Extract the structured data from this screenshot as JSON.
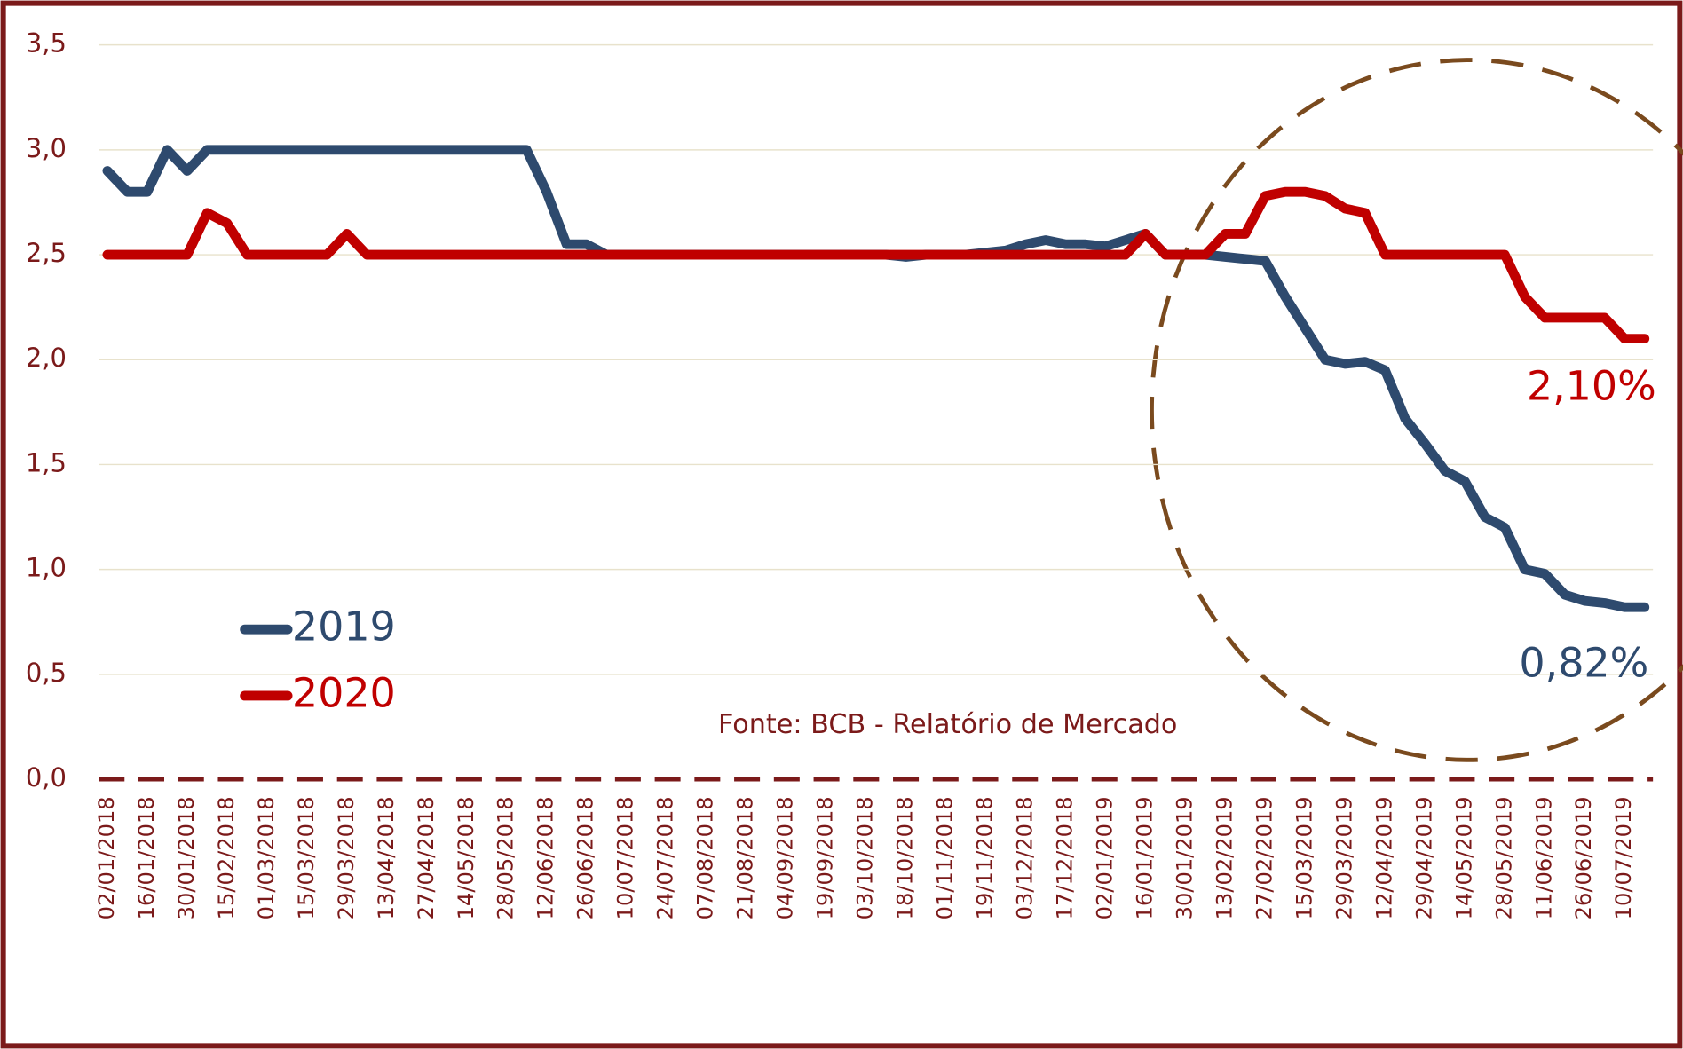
{
  "chart_data": {
    "type": "line",
    "categories": [
      "02/01/2018",
      null,
      "16/01/2018",
      null,
      "30/01/2018",
      null,
      "15/02/2018",
      null,
      "01/03/2018",
      null,
      "15/03/2018",
      null,
      "29/03/2018",
      null,
      "13/04/2018",
      null,
      "27/04/2018",
      null,
      "14/05/2018",
      null,
      "28/05/2018",
      null,
      "12/06/2018",
      null,
      "26/06/2018",
      null,
      "10/07/2018",
      null,
      "24/07/2018",
      null,
      "07/08/2018",
      null,
      "21/08/2018",
      null,
      "04/09/2018",
      null,
      "19/09/2018",
      null,
      "03/10/2018",
      null,
      "18/10/2018",
      null,
      "01/11/2018",
      null,
      "19/11/2018",
      null,
      "03/12/2018",
      null,
      "17/12/2018",
      null,
      "02/01/2019",
      null,
      "16/01/2019",
      null,
      "30/01/2019",
      null,
      "13/02/2019",
      null,
      "27/02/2019",
      null,
      "15/03/2019",
      null,
      "29/03/2019",
      null,
      "12/04/2019",
      null,
      "29/04/2019",
      null,
      "14/05/2019",
      null,
      "28/05/2019",
      null,
      "11/06/2019",
      null,
      "26/06/2019",
      null,
      "10/07/2019",
      null
    ],
    "series": [
      {
        "name": "2019",
        "color": "#2e4a6e",
        "values": [
          2.9,
          2.8,
          2.8,
          3.0,
          2.9,
          3.0,
          3.0,
          3.0,
          3.0,
          3.0,
          3.0,
          3.0,
          3.0,
          3.0,
          3.0,
          3.0,
          3.0,
          3.0,
          3.0,
          3.0,
          3.0,
          3.0,
          2.8,
          2.55,
          2.55,
          2.5,
          2.5,
          2.5,
          2.5,
          2.5,
          2.5,
          2.5,
          2.5,
          2.5,
          2.5,
          2.5,
          2.5,
          2.5,
          2.5,
          2.5,
          2.49,
          2.5,
          2.5,
          2.5,
          2.51,
          2.52,
          2.55,
          2.57,
          2.55,
          2.55,
          2.54,
          2.57,
          2.6,
          2.5,
          2.5,
          2.5,
          2.49,
          2.48,
          2.47,
          2.3,
          2.15,
          2.0,
          1.98,
          1.99,
          1.95,
          1.72,
          1.6,
          1.47,
          1.42,
          1.25,
          1.2,
          1.0,
          0.98,
          0.88,
          0.85,
          0.84,
          0.82,
          0.82
        ]
      },
      {
        "name": "2020",
        "color": "#c00000",
        "values": [
          2.5,
          2.5,
          2.5,
          2.5,
          2.5,
          2.7,
          2.65,
          2.5,
          2.5,
          2.5,
          2.5,
          2.5,
          2.6,
          2.5,
          2.5,
          2.5,
          2.5,
          2.5,
          2.5,
          2.5,
          2.5,
          2.5,
          2.5,
          2.5,
          2.5,
          2.5,
          2.5,
          2.5,
          2.5,
          2.5,
          2.5,
          2.5,
          2.5,
          2.5,
          2.5,
          2.5,
          2.5,
          2.5,
          2.5,
          2.5,
          2.5,
          2.5,
          2.5,
          2.5,
          2.5,
          2.5,
          2.5,
          2.5,
          2.5,
          2.5,
          2.5,
          2.5,
          2.6,
          2.5,
          2.5,
          2.5,
          2.6,
          2.6,
          2.78,
          2.8,
          2.8,
          2.78,
          2.72,
          2.7,
          2.5,
          2.5,
          2.5,
          2.5,
          2.5,
          2.5,
          2.5,
          2.3,
          2.2,
          2.2,
          2.2,
          2.2,
          2.1,
          2.1
        ]
      }
    ],
    "ylim": [
      0,
      3.5
    ],
    "yticks": [
      {
        "value": 0,
        "label": "0,0"
      },
      {
        "value": 0.5,
        "label": "0,5"
      },
      {
        "value": 1,
        "label": "1,0"
      },
      {
        "value": 1.5,
        "label": "1,5"
      },
      {
        "value": 2,
        "label": "2,0"
      },
      {
        "value": 2.5,
        "label": "2,5"
      },
      {
        "value": 3,
        "label": "3,0"
      },
      {
        "value": 3.5,
        "label": "3,5"
      }
    ],
    "grid": true,
    "legend": "lower left",
    "annotations": [
      "2,10%",
      "0,82%"
    ],
    "source": "Fonte: BCB - Relatório de Mercado"
  }
}
